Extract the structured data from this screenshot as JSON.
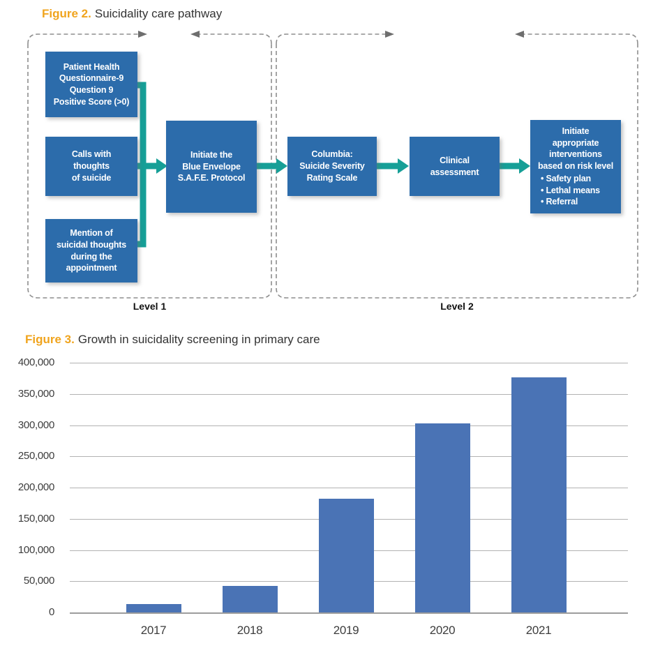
{
  "figure2": {
    "label": "Figure 2.",
    "title": "Suicidality care pathway",
    "level1_label": "Level 1",
    "level2_label": "Level 2",
    "boxes": {
      "phq9": "Patient Health\nQuestionnaire-9\nQuestion 9\nPositive Score (>0)",
      "calls": "Calls with\nthoughts\nof suicide",
      "mention": "Mention of\nsuicidal thoughts\nduring the\nappointment",
      "initiate": "Initiate the\nBlue Envelope\nS.A.F.E. Protocol",
      "columbia": "Columbia:\nSuicide Severity\nRating Scale",
      "clinical": "Clinical\nassessment",
      "interventions_intro": "Initiate\nappropriate\ninterventions\nbased on risk level",
      "interventions_bullets": [
        "• Safety plan",
        "• Lethal means",
        "• Referral"
      ]
    }
  },
  "figure3": {
    "label": "Figure 3.",
    "title": "Growth in suicidality screening in primary care"
  },
  "chart_data": {
    "type": "bar",
    "title": "Growth in suicidality screening in primary care",
    "categories": [
      "2017",
      "2018",
      "2019",
      "2020",
      "2021"
    ],
    "values": [
      13000,
      42000,
      182000,
      303000,
      376000
    ],
    "xlabel": "",
    "ylabel": "",
    "ylim": [
      0,
      400000
    ],
    "ytick_step": 50000,
    "ytick_labels": [
      "0",
      "50,000",
      "100,000",
      "150,000",
      "200,000",
      "250,000",
      "300,000",
      "350,000",
      "400,000"
    ],
    "grid": true,
    "legend": false,
    "bar_color": "#4a73b5"
  },
  "colors": {
    "accent_orange": "#f0a41e",
    "box_blue": "#2c6cab",
    "teal": "#169f97",
    "bar_blue": "#4a73b5",
    "grid_gray": "#b2b2b2",
    "dash_gray": "#8e8e8e"
  }
}
